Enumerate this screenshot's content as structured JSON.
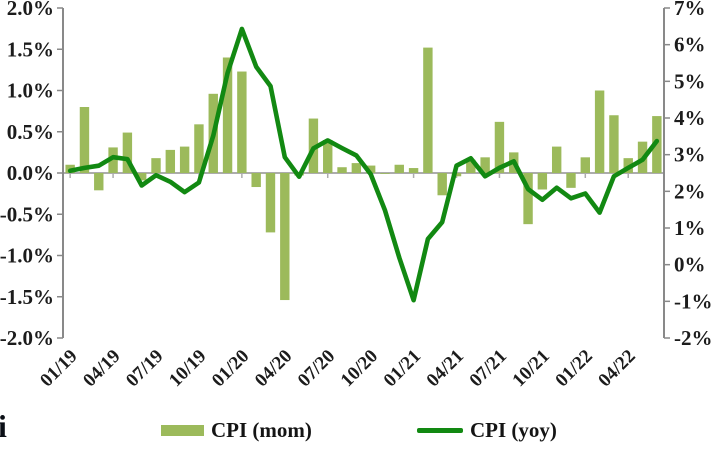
{
  "footer": {
    "partial_text": "i"
  },
  "colors": {
    "bar": "#9CBA5B",
    "line": "#128912",
    "axis": "#898989",
    "zero_line": "#ACACAC",
    "label_text": "#1c1c1c"
  },
  "chart_data": {
    "type": "bar+line combo",
    "title": "",
    "x": [
      "01/19",
      "02/19",
      "03/19",
      "04/19",
      "05/19",
      "06/19",
      "07/19",
      "08/19",
      "09/19",
      "10/19",
      "11/19",
      "12/19",
      "01/20",
      "02/20",
      "03/20",
      "04/20",
      "05/20",
      "06/20",
      "07/20",
      "08/20",
      "09/20",
      "10/20",
      "11/20",
      "12/20",
      "01/21",
      "02/21",
      "03/21",
      "04/21",
      "05/21",
      "06/21",
      "07/21",
      "08/21",
      "09/21",
      "10/21",
      "11/21",
      "12/21",
      "01/22",
      "02/22",
      "03/22",
      "04/22",
      "05/22",
      "06/22"
    ],
    "x_tick_labels": [
      "01/19",
      "04/19",
      "07/19",
      "10/19",
      "01/20",
      "04/20",
      "07/20",
      "10/20",
      "01/21",
      "04/21",
      "07/21",
      "10/21",
      "01/22",
      "04/22"
    ],
    "series": [
      {
        "name": "CPI (mom)",
        "type": "bar",
        "axis": "left",
        "values": [
          0.1,
          0.8,
          -0.21,
          0.31,
          0.49,
          -0.09,
          0.18,
          0.28,
          0.32,
          0.59,
          0.96,
          1.4,
          1.23,
          -0.17,
          -0.72,
          -1.54,
          -0.03,
          0.66,
          0.4,
          0.07,
          0.12,
          0.09,
          -0.01,
          0.1,
          0.06,
          1.52,
          -0.27,
          -0.04,
          0.16,
          0.19,
          0.62,
          0.25,
          -0.62,
          -0.2,
          0.32,
          -0.18,
          0.19,
          1.0,
          0.7,
          0.18,
          0.38,
          0.69
        ]
      },
      {
        "name": "CPI (yoy)",
        "type": "line",
        "axis": "right",
        "values": [
          2.56,
          2.64,
          2.7,
          2.93,
          2.88,
          2.16,
          2.44,
          2.26,
          1.98,
          2.24,
          3.52,
          5.23,
          6.43,
          5.4,
          4.87,
          2.93,
          2.4,
          3.17,
          3.39,
          3.18,
          2.98,
          2.47,
          1.48,
          0.19,
          -0.97,
          0.7,
          1.16,
          2.7,
          2.9,
          2.41,
          2.64,
          2.82,
          2.06,
          1.77,
          2.1,
          1.81,
          1.94,
          1.42,
          2.41,
          2.64,
          2.86,
          3.37
        ]
      }
    ],
    "left_axis": {
      "min": -2.0,
      "max": 2.0,
      "step": 0.5,
      "tick_labels": [
        "2.0%",
        "1.5%",
        "1.0%",
        "0.5%",
        "0.0%",
        "-0.5%",
        "-1.0%",
        "-1.5%",
        "-2.0%"
      ]
    },
    "right_axis": {
      "min": -2,
      "max": 7,
      "step": 1,
      "tick_labels": [
        "7%",
        "6%",
        "5%",
        "4%",
        "3%",
        "2%",
        "1%",
        "0%",
        "-1%",
        "-2%"
      ]
    },
    "grid": false,
    "legend_position": "bottom"
  }
}
